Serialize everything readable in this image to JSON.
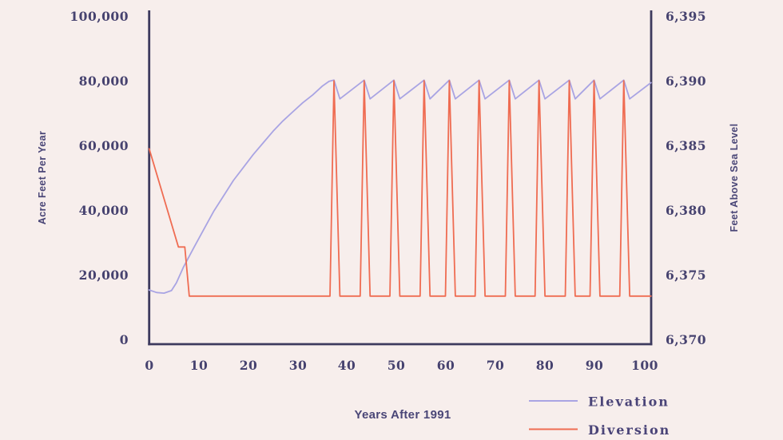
{
  "background": "#f7eeec",
  "colors": {
    "axis": "#3d3a5e",
    "tick_text": "#46426f",
    "title_text": "#4a4677",
    "elevation": "#a9a4e3",
    "diversion": "#ef6c52"
  },
  "chart_data": {
    "type": "line",
    "title": "",
    "xlabel": "Years After 1991",
    "ylabel_left": "Acre Feet Per Year",
    "ylabel_right": "Feet Above Sea Level",
    "xlim": [
      0,
      101.3
    ],
    "ylim_left": [
      0,
      100000
    ],
    "ylim_right": [
      6370,
      6395
    ],
    "grid": false,
    "x_tick_values": [
      0,
      10,
      20,
      30,
      40,
      50,
      60,
      70,
      80,
      90,
      100
    ],
    "x_tick_labels": [
      "0",
      "10",
      "20",
      "30",
      "40",
      "50",
      "60",
      "70",
      "80",
      "90",
      "100"
    ],
    "y_left_tick_values": [
      100000,
      80000,
      60000,
      40000,
      20000,
      0
    ],
    "y_left_tick_labels": [
      "100,000",
      "80,000",
      "60,000",
      "40,000",
      "20,000",
      "0"
    ],
    "y_right_tick_values": [
      6395,
      6390,
      6385,
      6380,
      6375,
      6370
    ],
    "y_right_tick_labels": [
      "6,395",
      "6,390",
      "6,385",
      "6,380",
      "6,375",
      "6,370"
    ],
    "legend_position": "bottom-right",
    "legend": [
      "Elevation",
      "Diversion"
    ],
    "series": [
      {
        "name": "Elevation",
        "axis": "right",
        "units": "feet above sea level",
        "color": "#a9a4e3",
        "points": [
          [
            0,
            6373.85
          ],
          [
            1.5,
            6373.65
          ],
          [
            3,
            6373.6
          ],
          [
            4.5,
            6373.8
          ],
          [
            5.5,
            6374.4
          ],
          [
            6.9,
            6375.6
          ],
          [
            9,
            6377.1
          ],
          [
            11,
            6378.5
          ],
          [
            13,
            6379.9
          ],
          [
            15,
            6381.1
          ],
          [
            17,
            6382.3
          ],
          [
            19,
            6383.3
          ],
          [
            21,
            6384.3
          ],
          [
            23,
            6385.2
          ],
          [
            25,
            6386.1
          ],
          [
            27,
            6386.9
          ],
          [
            29,
            6387.6
          ],
          [
            31,
            6388.3
          ],
          [
            33,
            6388.9
          ],
          [
            35,
            6389.6
          ],
          [
            36.3,
            6389.95
          ],
          [
            37.3,
            6390.05
          ],
          [
            38.5,
            6388.6
          ],
          [
            43.4,
            6390.05
          ],
          [
            44.6,
            6388.6
          ],
          [
            49.4,
            6390.05
          ],
          [
            50.6,
            6388.6
          ],
          [
            55.5,
            6390.05
          ],
          [
            56.7,
            6388.6
          ],
          [
            60.6,
            6390.05
          ],
          [
            61.8,
            6388.6
          ],
          [
            66.6,
            6390.05
          ],
          [
            67.8,
            6388.6
          ],
          [
            72.7,
            6390.05
          ],
          [
            73.9,
            6388.6
          ],
          [
            78.7,
            6390.05
          ],
          [
            79.9,
            6388.6
          ],
          [
            84.8,
            6390.05
          ],
          [
            86.0,
            6388.6
          ],
          [
            89.8,
            6390.05
          ],
          [
            91.0,
            6388.6
          ],
          [
            95.8,
            6390.05
          ],
          [
            97.0,
            6388.6
          ],
          [
            101.3,
            6389.85
          ]
        ]
      },
      {
        "name": "Diversion",
        "axis": "left",
        "units": "acre feet per year",
        "color": "#ef6c52",
        "points": [
          [
            0,
            59000
          ],
          [
            5.76,
            29400
          ],
          [
            5.9,
            28650
          ],
          [
            7.2,
            28650
          ],
          [
            8.1,
            13500
          ],
          [
            36.5,
            13500
          ],
          [
            37.3,
            80000
          ],
          [
            38.5,
            13500
          ],
          [
            42.6,
            13500
          ],
          [
            43.4,
            80000
          ],
          [
            44.6,
            13500
          ],
          [
            48.6,
            13500
          ],
          [
            49.4,
            80000
          ],
          [
            50.6,
            13500
          ],
          [
            54.7,
            13500
          ],
          [
            55.5,
            80000
          ],
          [
            56.7,
            13500
          ],
          [
            59.8,
            13500
          ],
          [
            60.6,
            80000
          ],
          [
            61.8,
            13500
          ],
          [
            65.8,
            13500
          ],
          [
            66.6,
            80000
          ],
          [
            67.8,
            13500
          ],
          [
            71.9,
            13500
          ],
          [
            72.7,
            80000
          ],
          [
            73.9,
            13500
          ],
          [
            77.9,
            13500
          ],
          [
            78.7,
            80000
          ],
          [
            79.9,
            13500
          ],
          [
            84.0,
            13500
          ],
          [
            84.8,
            80000
          ],
          [
            86.0,
            13500
          ],
          [
            89.0,
            13500
          ],
          [
            89.8,
            80000
          ],
          [
            91.0,
            13500
          ],
          [
            95.0,
            13500
          ],
          [
            95.8,
            80000
          ],
          [
            97.0,
            13500
          ],
          [
            101.3,
            13500
          ]
        ]
      }
    ]
  }
}
